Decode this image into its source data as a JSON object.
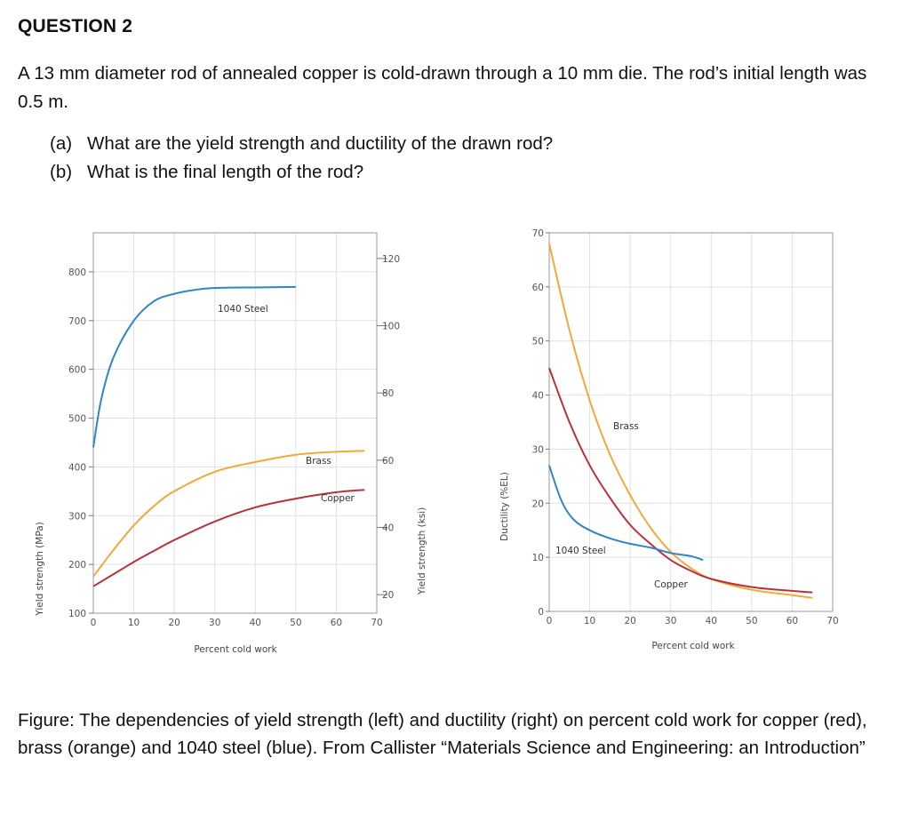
{
  "question": {
    "title": "QUESTION 2",
    "text": "A 13 mm diameter rod of annealed copper is cold-drawn through a 10 mm die. The rod’s initial length was 0.5 m.",
    "parts": [
      {
        "label": "(a)",
        "text": "What are the yield strength and ductility of the drawn rod?"
      },
      {
        "label": "(b)",
        "text": "What is the final length of the rod?"
      }
    ]
  },
  "chart_data": [
    {
      "type": "line",
      "xlabel": "Percent cold work",
      "ylabel": "Yield strength (MPa)",
      "ylabel_right": "Yield strength (ksi)",
      "xlim": [
        0,
        70
      ],
      "ylim": [
        100,
        880
      ],
      "x_ticks": [
        "0",
        "10",
        "20",
        "30",
        "40",
        "50",
        "60",
        "70"
      ],
      "y_ticks": [
        "100",
        "200",
        "300",
        "400",
        "500",
        "600",
        "700",
        "800"
      ],
      "y_ticks_right": [
        "20",
        "40",
        "60",
        "80",
        "100",
        "120"
      ],
      "series": [
        {
          "name": "1040 Steel",
          "color": "#2f86c1",
          "x": [
            0,
            2,
            5,
            10,
            15,
            20,
            25,
            30,
            40,
            50
          ],
          "y": [
            440,
            540,
            625,
            700,
            740,
            755,
            763,
            767,
            768,
            769
          ]
        },
        {
          "name": "Brass",
          "color": "#f0a93b",
          "x": [
            0,
            5,
            10,
            15,
            20,
            30,
            40,
            50,
            60,
            67
          ],
          "y": [
            175,
            230,
            280,
            320,
            350,
            390,
            410,
            425,
            431,
            433
          ]
        },
        {
          "name": "Copper",
          "color": "#b8323c",
          "x": [
            0,
            5,
            10,
            15,
            20,
            30,
            40,
            50,
            60,
            67
          ],
          "y": [
            155,
            180,
            205,
            228,
            250,
            288,
            317,
            335,
            348,
            353
          ]
        }
      ],
      "labels": [
        "1040 Steel",
        "Brass",
        "Copper"
      ]
    },
    {
      "type": "line",
      "xlabel": "Percent cold work",
      "ylabel": "Ductility (%EL)",
      "xlim": [
        0,
        70
      ],
      "ylim": [
        0,
        70
      ],
      "x_ticks": [
        "0",
        "10",
        "20",
        "30",
        "40",
        "50",
        "60",
        "70"
      ],
      "y_ticks": [
        "0",
        "10",
        "20",
        "30",
        "40",
        "50",
        "60",
        "70"
      ],
      "series": [
        {
          "name": "Brass",
          "color": "#f0a93b",
          "x": [
            0,
            5,
            10,
            15,
            20,
            25,
            30,
            35,
            40,
            50,
            60,
            65
          ],
          "y": [
            68,
            52,
            39,
            29,
            21.5,
            15.5,
            11,
            8,
            6,
            4,
            3,
            2.5
          ]
        },
        {
          "name": "Copper",
          "color": "#b8323c",
          "x": [
            0,
            5,
            10,
            15,
            20,
            25,
            30,
            35,
            40,
            50,
            60,
            65
          ],
          "y": [
            45,
            35,
            27,
            21,
            16,
            12.5,
            9.5,
            7.5,
            6,
            4.5,
            3.8,
            3.5
          ]
        },
        {
          "name": "1040 Steel",
          "color": "#2f86c1",
          "x": [
            0,
            3,
            6,
            10,
            15,
            20,
            25,
            30,
            35,
            38
          ],
          "y": [
            27,
            20.5,
            17,
            15,
            13.5,
            12.5,
            11.8,
            10.8,
            10.2,
            9.5
          ]
        }
      ],
      "labels": [
        "Brass",
        "1040 Steel",
        "Copper"
      ]
    }
  ],
  "caption": "Figure: The dependencies of yield strength (left) and ductility (right) on percent cold work for copper (red), brass (orange) and 1040 steel (blue). From Callister “Materials Science and Engineering: an Introduction”"
}
